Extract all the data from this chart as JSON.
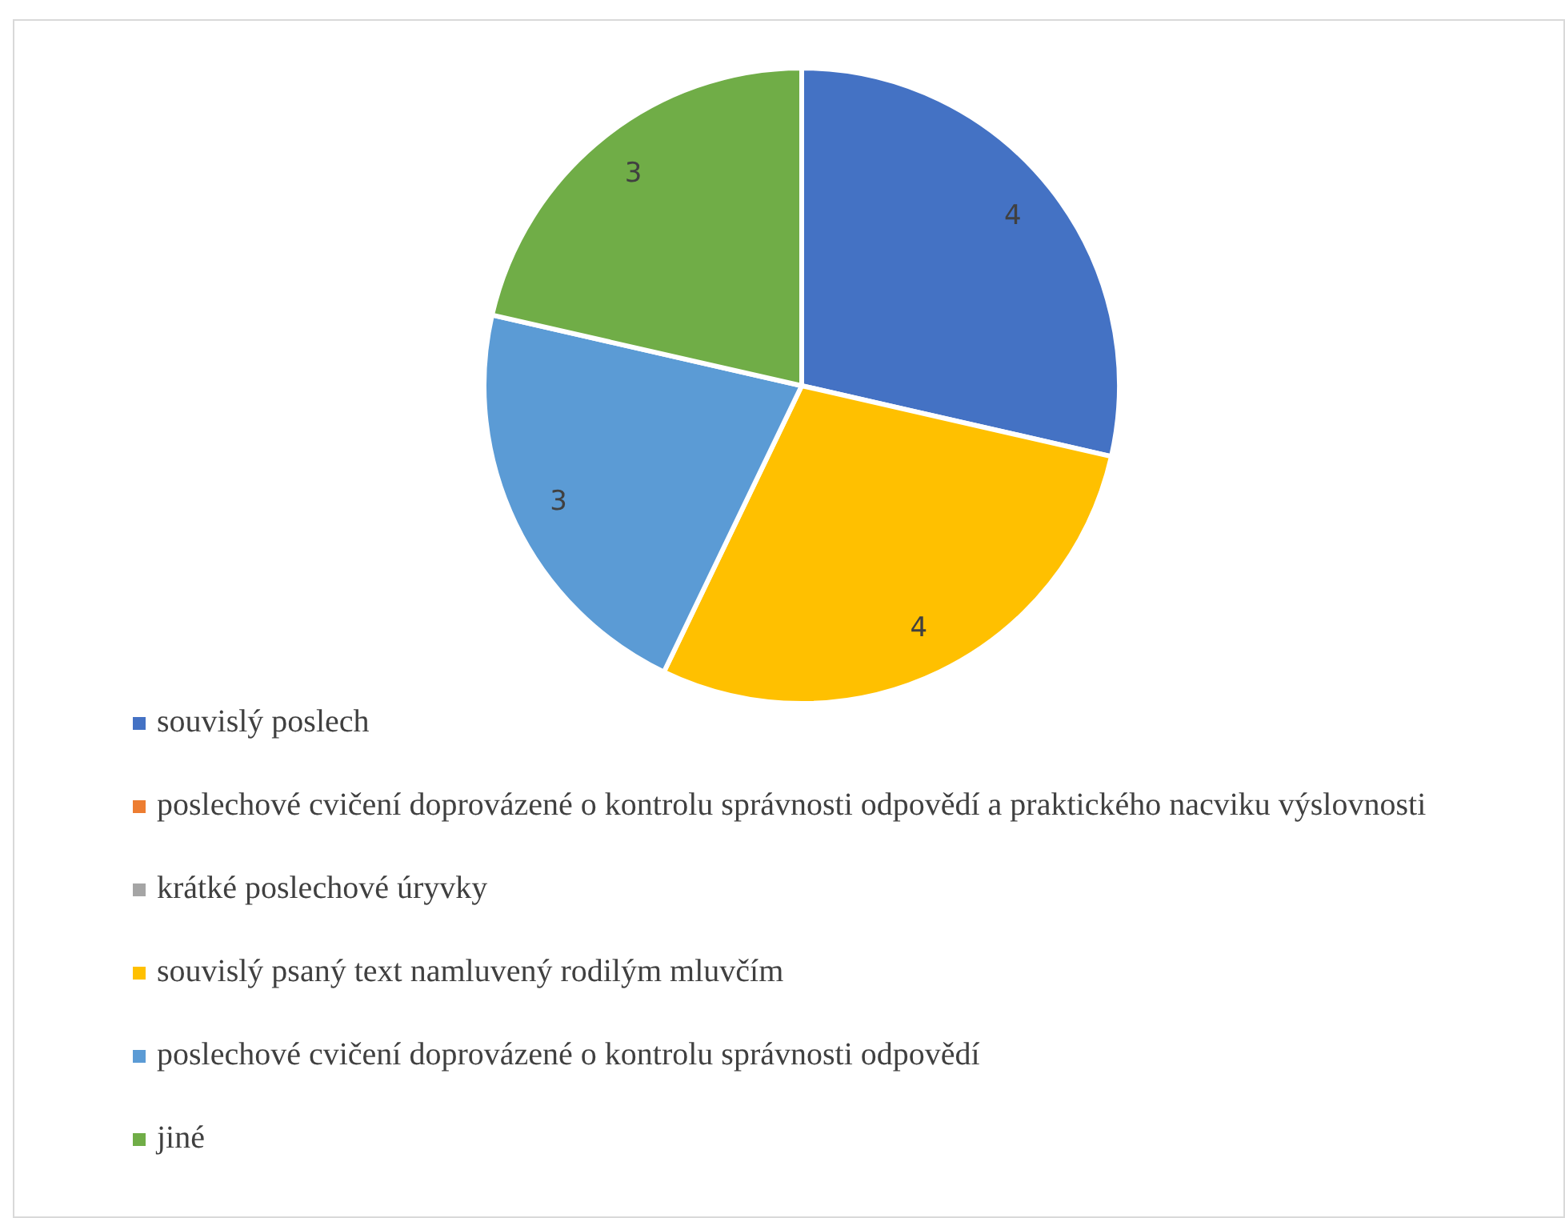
{
  "chart_data": {
    "type": "pie",
    "categories": [
      "souvislý poslech",
      "poslechové cvičení doprovázené o kontrolu správnosti odpovědí a praktického nacviku výslovnosti",
      "krátké poslechové úryvky",
      "souvislý psaný text namluvený rodilým mluvčím",
      "poslechové cvičení doprovázené o kontrolu správnosti odpovědí",
      "jiné"
    ],
    "values": [
      4,
      0,
      0,
      4,
      3,
      3
    ],
    "colors": [
      "#4472c4",
      "#ed7d31",
      "#a5a5a5",
      "#ffc000",
      "#5b9bd5",
      "#70ad47"
    ],
    "value_labels": [
      "4",
      null,
      null,
      "4",
      "3",
      "3"
    ],
    "legend": "bottom"
  }
}
